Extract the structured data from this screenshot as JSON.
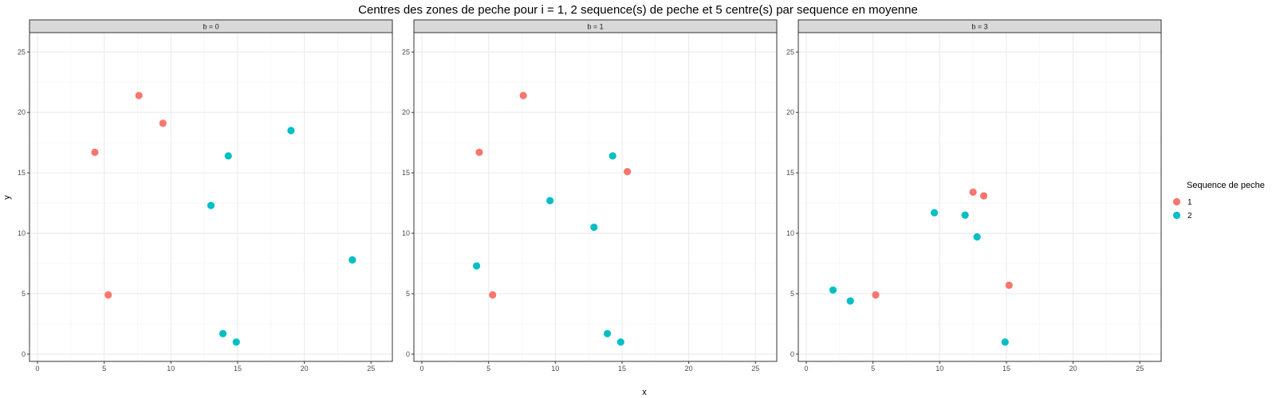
{
  "chart_data": {
    "type": "scatter",
    "title": "Centres des zones de peche pour i = 1, 2 sequence(s) de peche et 5 centre(s) par sequence en moyenne",
    "xlabel": "x",
    "ylabel": "y",
    "xlim": [
      -0.6,
      26.6
    ],
    "ylim": [
      -0.6,
      26.6
    ],
    "xticks": [
      0,
      5,
      10,
      15,
      20,
      25
    ],
    "yticks": [
      0,
      5,
      10,
      15,
      20,
      25
    ],
    "grid": true,
    "legend": {
      "title": "Sequence de peche",
      "position": "right",
      "entries": [
        {
          "label": "1",
          "color": "#F8766D"
        },
        {
          "label": "2",
          "color": "#00BFC4"
        }
      ]
    },
    "panels": [
      {
        "label": "b = 0",
        "series": [
          {
            "name": "1",
            "color": "#F8766D",
            "points": [
              [
                4.3,
                16.7
              ],
              [
                7.6,
                21.4
              ],
              [
                9.4,
                19.1
              ],
              [
                5.3,
                4.9
              ]
            ]
          },
          {
            "name": "2",
            "color": "#00BFC4",
            "points": [
              [
                13.0,
                12.3
              ],
              [
                14.3,
                16.4
              ],
              [
                19.0,
                18.5
              ],
              [
                23.6,
                7.8
              ],
              [
                13.9,
                1.7
              ],
              [
                14.9,
                1.0
              ]
            ]
          }
        ]
      },
      {
        "label": "b = 1",
        "series": [
          {
            "name": "1",
            "color": "#F8766D",
            "points": [
              [
                4.3,
                16.7
              ],
              [
                7.6,
                21.4
              ],
              [
                15.4,
                15.1
              ],
              [
                5.3,
                4.9
              ]
            ]
          },
          {
            "name": "2",
            "color": "#00BFC4",
            "points": [
              [
                9.6,
                12.7
              ],
              [
                14.3,
                16.4
              ],
              [
                12.9,
                10.5
              ],
              [
                4.1,
                7.3
              ],
              [
                13.9,
                1.7
              ],
              [
                14.9,
                1.0
              ]
            ]
          }
        ]
      },
      {
        "label": "b = 3",
        "series": [
          {
            "name": "1",
            "color": "#F8766D",
            "points": [
              [
                12.5,
                13.4
              ],
              [
                13.3,
                13.1
              ],
              [
                15.2,
                5.7
              ],
              [
                5.2,
                4.9
              ]
            ]
          },
          {
            "name": "2",
            "color": "#00BFC4",
            "points": [
              [
                9.6,
                11.7
              ],
              [
                11.9,
                11.5
              ],
              [
                12.8,
                9.7
              ],
              [
                2.0,
                5.3
              ],
              [
                3.3,
                4.4
              ],
              [
                14.9,
                1.0
              ]
            ]
          }
        ]
      }
    ]
  }
}
